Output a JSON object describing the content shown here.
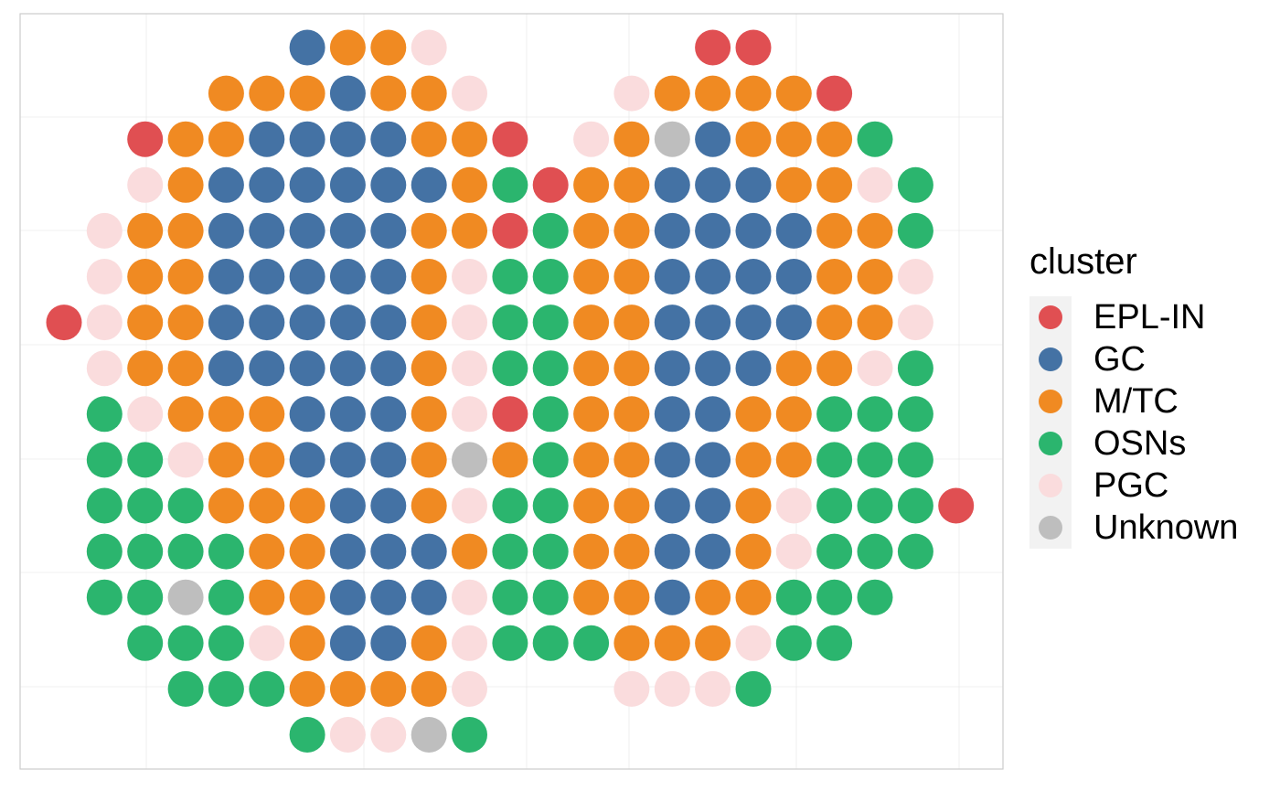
{
  "chart_data": {
    "type": "scatter",
    "title": "",
    "xlabel": "",
    "ylabel": "",
    "grid": true,
    "legend": {
      "title": "cluster",
      "placement": "right",
      "entries": [
        {
          "name": "EPL-IN",
          "color": "#E04F52"
        },
        {
          "name": "GC",
          "color": "#4472A4"
        },
        {
          "name": "M/TC",
          "color": "#F08A22"
        },
        {
          "name": "OSNs",
          "color": "#2BB56E"
        },
        {
          "name": "PGC",
          "color": "#FADCDD"
        },
        {
          "name": "Unknown",
          "color": "#BEBEBE"
        }
      ]
    },
    "rows": [
      {
        "y": 1,
        "points": [
          [
            7,
            "GC"
          ],
          [
            8,
            "M/TC"
          ],
          [
            9,
            "M/TC"
          ],
          [
            10,
            "PGC"
          ],
          [
            17,
            "EPL-IN"
          ],
          [
            18,
            "EPL-IN"
          ]
        ]
      },
      {
        "y": 2,
        "points": [
          [
            5,
            "M/TC"
          ],
          [
            6,
            "M/TC"
          ],
          [
            7,
            "M/TC"
          ],
          [
            8,
            "GC"
          ],
          [
            9,
            "M/TC"
          ],
          [
            10,
            "M/TC"
          ],
          [
            11,
            "PGC"
          ],
          [
            15,
            "PGC"
          ],
          [
            16,
            "M/TC"
          ],
          [
            17,
            "M/TC"
          ],
          [
            18,
            "M/TC"
          ],
          [
            19,
            "M/TC"
          ],
          [
            20,
            "EPL-IN"
          ]
        ]
      },
      {
        "y": 3,
        "points": [
          [
            3,
            "EPL-IN"
          ],
          [
            4,
            "M/TC"
          ],
          [
            5,
            "M/TC"
          ],
          [
            6,
            "GC"
          ],
          [
            7,
            "GC"
          ],
          [
            8,
            "GC"
          ],
          [
            9,
            "GC"
          ],
          [
            10,
            "M/TC"
          ],
          [
            11,
            "M/TC"
          ],
          [
            12,
            "EPL-IN"
          ],
          [
            14,
            "PGC"
          ],
          [
            15,
            "M/TC"
          ],
          [
            16,
            "Unknown"
          ],
          [
            17,
            "GC"
          ],
          [
            18,
            "M/TC"
          ],
          [
            19,
            "M/TC"
          ],
          [
            20,
            "M/TC"
          ],
          [
            21,
            "OSNs"
          ]
        ]
      },
      {
        "y": 4,
        "points": [
          [
            3,
            "PGC"
          ],
          [
            4,
            "M/TC"
          ],
          [
            5,
            "GC"
          ],
          [
            6,
            "GC"
          ],
          [
            7,
            "GC"
          ],
          [
            8,
            "GC"
          ],
          [
            9,
            "GC"
          ],
          [
            10,
            "GC"
          ],
          [
            11,
            "M/TC"
          ],
          [
            12,
            "OSNs"
          ],
          [
            13,
            "EPL-IN"
          ],
          [
            14,
            "M/TC"
          ],
          [
            15,
            "M/TC"
          ],
          [
            16,
            "GC"
          ],
          [
            17,
            "GC"
          ],
          [
            18,
            "GC"
          ],
          [
            19,
            "M/TC"
          ],
          [
            20,
            "M/TC"
          ],
          [
            21,
            "PGC"
          ],
          [
            22,
            "OSNs"
          ]
        ]
      },
      {
        "y": 5,
        "points": [
          [
            2,
            "PGC"
          ],
          [
            3,
            "M/TC"
          ],
          [
            4,
            "M/TC"
          ],
          [
            5,
            "GC"
          ],
          [
            6,
            "GC"
          ],
          [
            7,
            "GC"
          ],
          [
            8,
            "GC"
          ],
          [
            9,
            "GC"
          ],
          [
            10,
            "M/TC"
          ],
          [
            11,
            "M/TC"
          ],
          [
            12,
            "EPL-IN"
          ],
          [
            13,
            "OSNs"
          ],
          [
            14,
            "M/TC"
          ],
          [
            15,
            "M/TC"
          ],
          [
            16,
            "GC"
          ],
          [
            17,
            "GC"
          ],
          [
            18,
            "GC"
          ],
          [
            19,
            "GC"
          ],
          [
            20,
            "M/TC"
          ],
          [
            21,
            "M/TC"
          ],
          [
            22,
            "OSNs"
          ]
        ]
      },
      {
        "y": 6,
        "points": [
          [
            2,
            "PGC"
          ],
          [
            3,
            "M/TC"
          ],
          [
            4,
            "M/TC"
          ],
          [
            5,
            "GC"
          ],
          [
            6,
            "GC"
          ],
          [
            7,
            "GC"
          ],
          [
            8,
            "GC"
          ],
          [
            9,
            "GC"
          ],
          [
            10,
            "M/TC"
          ],
          [
            11,
            "PGC"
          ],
          [
            12,
            "OSNs"
          ],
          [
            13,
            "OSNs"
          ],
          [
            14,
            "M/TC"
          ],
          [
            15,
            "M/TC"
          ],
          [
            16,
            "GC"
          ],
          [
            17,
            "GC"
          ],
          [
            18,
            "GC"
          ],
          [
            19,
            "GC"
          ],
          [
            20,
            "M/TC"
          ],
          [
            21,
            "M/TC"
          ],
          [
            22,
            "PGC"
          ]
        ]
      },
      {
        "y": 7,
        "points": [
          [
            1,
            "EPL-IN"
          ],
          [
            2,
            "PGC"
          ],
          [
            3,
            "M/TC"
          ],
          [
            4,
            "M/TC"
          ],
          [
            5,
            "GC"
          ],
          [
            6,
            "GC"
          ],
          [
            7,
            "GC"
          ],
          [
            8,
            "GC"
          ],
          [
            9,
            "GC"
          ],
          [
            10,
            "M/TC"
          ],
          [
            11,
            "PGC"
          ],
          [
            12,
            "OSNs"
          ],
          [
            13,
            "OSNs"
          ],
          [
            14,
            "M/TC"
          ],
          [
            15,
            "M/TC"
          ],
          [
            16,
            "GC"
          ],
          [
            17,
            "GC"
          ],
          [
            18,
            "GC"
          ],
          [
            19,
            "GC"
          ],
          [
            20,
            "M/TC"
          ],
          [
            21,
            "M/TC"
          ],
          [
            22,
            "PGC"
          ]
        ]
      },
      {
        "y": 8,
        "points": [
          [
            2,
            "PGC"
          ],
          [
            3,
            "M/TC"
          ],
          [
            4,
            "M/TC"
          ],
          [
            5,
            "GC"
          ],
          [
            6,
            "GC"
          ],
          [
            7,
            "GC"
          ],
          [
            8,
            "GC"
          ],
          [
            9,
            "GC"
          ],
          [
            10,
            "M/TC"
          ],
          [
            11,
            "PGC"
          ],
          [
            12,
            "OSNs"
          ],
          [
            13,
            "OSNs"
          ],
          [
            14,
            "M/TC"
          ],
          [
            15,
            "M/TC"
          ],
          [
            16,
            "GC"
          ],
          [
            17,
            "GC"
          ],
          [
            18,
            "GC"
          ],
          [
            19,
            "M/TC"
          ],
          [
            20,
            "M/TC"
          ],
          [
            21,
            "PGC"
          ],
          [
            22,
            "OSNs"
          ]
        ]
      },
      {
        "y": 9,
        "points": [
          [
            2,
            "OSNs"
          ],
          [
            3,
            "PGC"
          ],
          [
            4,
            "M/TC"
          ],
          [
            5,
            "M/TC"
          ],
          [
            6,
            "M/TC"
          ],
          [
            7,
            "GC"
          ],
          [
            8,
            "GC"
          ],
          [
            9,
            "GC"
          ],
          [
            10,
            "M/TC"
          ],
          [
            11,
            "PGC"
          ],
          [
            12,
            "EPL-IN"
          ],
          [
            13,
            "OSNs"
          ],
          [
            14,
            "M/TC"
          ],
          [
            15,
            "M/TC"
          ],
          [
            16,
            "GC"
          ],
          [
            17,
            "GC"
          ],
          [
            18,
            "M/TC"
          ],
          [
            19,
            "M/TC"
          ],
          [
            20,
            "OSNs"
          ],
          [
            21,
            "OSNs"
          ],
          [
            22,
            "OSNs"
          ]
        ]
      },
      {
        "y": 10,
        "points": [
          [
            2,
            "OSNs"
          ],
          [
            3,
            "OSNs"
          ],
          [
            4,
            "PGC"
          ],
          [
            5,
            "M/TC"
          ],
          [
            6,
            "M/TC"
          ],
          [
            7,
            "GC"
          ],
          [
            8,
            "GC"
          ],
          [
            9,
            "GC"
          ],
          [
            10,
            "M/TC"
          ],
          [
            11,
            "Unknown"
          ],
          [
            12,
            "M/TC"
          ],
          [
            13,
            "OSNs"
          ],
          [
            14,
            "M/TC"
          ],
          [
            15,
            "M/TC"
          ],
          [
            16,
            "GC"
          ],
          [
            17,
            "GC"
          ],
          [
            18,
            "M/TC"
          ],
          [
            19,
            "M/TC"
          ],
          [
            20,
            "OSNs"
          ],
          [
            21,
            "OSNs"
          ],
          [
            22,
            "OSNs"
          ]
        ]
      },
      {
        "y": 11,
        "points": [
          [
            2,
            "OSNs"
          ],
          [
            3,
            "OSNs"
          ],
          [
            4,
            "OSNs"
          ],
          [
            5,
            "M/TC"
          ],
          [
            6,
            "M/TC"
          ],
          [
            7,
            "M/TC"
          ],
          [
            8,
            "GC"
          ],
          [
            9,
            "GC"
          ],
          [
            10,
            "M/TC"
          ],
          [
            11,
            "PGC"
          ],
          [
            12,
            "OSNs"
          ],
          [
            13,
            "OSNs"
          ],
          [
            14,
            "M/TC"
          ],
          [
            15,
            "M/TC"
          ],
          [
            16,
            "GC"
          ],
          [
            17,
            "GC"
          ],
          [
            18,
            "M/TC"
          ],
          [
            19,
            "PGC"
          ],
          [
            20,
            "OSNs"
          ],
          [
            21,
            "OSNs"
          ],
          [
            22,
            "OSNs"
          ],
          [
            23,
            "EPL-IN"
          ]
        ]
      },
      {
        "y": 12,
        "points": [
          [
            2,
            "OSNs"
          ],
          [
            3,
            "OSNs"
          ],
          [
            4,
            "OSNs"
          ],
          [
            5,
            "OSNs"
          ],
          [
            6,
            "M/TC"
          ],
          [
            7,
            "M/TC"
          ],
          [
            8,
            "GC"
          ],
          [
            9,
            "GC"
          ],
          [
            10,
            "GC"
          ],
          [
            11,
            "M/TC"
          ],
          [
            12,
            "OSNs"
          ],
          [
            13,
            "OSNs"
          ],
          [
            14,
            "M/TC"
          ],
          [
            15,
            "M/TC"
          ],
          [
            16,
            "GC"
          ],
          [
            17,
            "GC"
          ],
          [
            18,
            "M/TC"
          ],
          [
            19,
            "PGC"
          ],
          [
            20,
            "OSNs"
          ],
          [
            21,
            "OSNs"
          ],
          [
            22,
            "OSNs"
          ]
        ]
      },
      {
        "y": 13,
        "points": [
          [
            2,
            "OSNs"
          ],
          [
            3,
            "OSNs"
          ],
          [
            4,
            "Unknown"
          ],
          [
            5,
            "OSNs"
          ],
          [
            6,
            "M/TC"
          ],
          [
            7,
            "M/TC"
          ],
          [
            8,
            "GC"
          ],
          [
            9,
            "GC"
          ],
          [
            10,
            "GC"
          ],
          [
            11,
            "PGC"
          ],
          [
            12,
            "OSNs"
          ],
          [
            13,
            "OSNs"
          ],
          [
            14,
            "M/TC"
          ],
          [
            15,
            "M/TC"
          ],
          [
            16,
            "GC"
          ],
          [
            17,
            "M/TC"
          ],
          [
            18,
            "M/TC"
          ],
          [
            19,
            "OSNs"
          ],
          [
            20,
            "OSNs"
          ],
          [
            21,
            "OSNs"
          ]
        ]
      },
      {
        "y": 14,
        "points": [
          [
            3,
            "OSNs"
          ],
          [
            4,
            "OSNs"
          ],
          [
            5,
            "OSNs"
          ],
          [
            6,
            "PGC"
          ],
          [
            7,
            "M/TC"
          ],
          [
            8,
            "GC"
          ],
          [
            9,
            "GC"
          ],
          [
            10,
            "M/TC"
          ],
          [
            11,
            "PGC"
          ],
          [
            12,
            "OSNs"
          ],
          [
            13,
            "OSNs"
          ],
          [
            14,
            "OSNs"
          ],
          [
            15,
            "M/TC"
          ],
          [
            16,
            "M/TC"
          ],
          [
            17,
            "M/TC"
          ],
          [
            18,
            "PGC"
          ],
          [
            19,
            "OSNs"
          ],
          [
            20,
            "OSNs"
          ]
        ]
      },
      {
        "y": 15,
        "points": [
          [
            4,
            "OSNs"
          ],
          [
            5,
            "OSNs"
          ],
          [
            6,
            "OSNs"
          ],
          [
            7,
            "M/TC"
          ],
          [
            8,
            "M/TC"
          ],
          [
            9,
            "M/TC"
          ],
          [
            10,
            "M/TC"
          ],
          [
            11,
            "PGC"
          ],
          [
            15,
            "PGC"
          ],
          [
            16,
            "PGC"
          ],
          [
            17,
            "PGC"
          ],
          [
            18,
            "OSNs"
          ]
        ]
      },
      {
        "y": 16,
        "points": [
          [
            7,
            "OSNs"
          ],
          [
            8,
            "PGC"
          ],
          [
            9,
            "PGC"
          ],
          [
            10,
            "Unknown"
          ],
          [
            11,
            "OSNs"
          ]
        ]
      }
    ]
  }
}
